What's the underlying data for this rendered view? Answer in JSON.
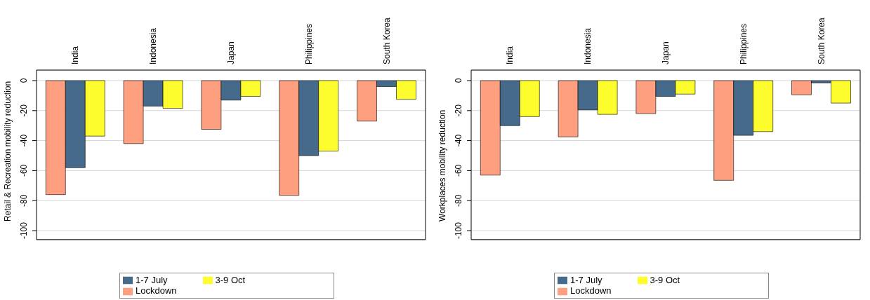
{
  "chart_data": [
    {
      "type": "bar",
      "ylabel": "Retail & Recreation mobility reduction",
      "categories": [
        "India",
        "Indonesia",
        "Japan",
        "Philippines",
        "South Korea"
      ],
      "series": [
        {
          "name": "Lockdown",
          "color": "#fe9f7f",
          "values": [
            -76,
            -42,
            -32.5,
            -76.5,
            -27
          ]
        },
        {
          "name": "1-7 July",
          "color": "#456a8b",
          "values": [
            -58,
            -17,
            -13,
            -50,
            -4
          ]
        },
        {
          "name": "3-9 Oct",
          "color": "#fdfd2e",
          "values": [
            -37,
            -18.5,
            -10.5,
            -47,
            -12.5
          ]
        }
      ],
      "ylim": [
        -106,
        7
      ],
      "yticks": [
        0,
        -20,
        -40,
        -60,
        -80,
        -100
      ],
      "grid": "y",
      "legend": "bottom"
    },
    {
      "type": "bar",
      "ylabel": "Workplaces mobility reduction",
      "categories": [
        "India",
        "Indonesia",
        "Japan",
        "Philippines",
        "South Korea"
      ],
      "series": [
        {
          "name": "Lockdown",
          "color": "#fe9f7f",
          "values": [
            -63,
            -37.5,
            -22,
            -66.5,
            -9.5
          ]
        },
        {
          "name": "1-7 July",
          "color": "#456a8b",
          "values": [
            -30,
            -19.5,
            -10.5,
            -36.5,
            -1.5
          ]
        },
        {
          "name": "3-9 Oct",
          "color": "#fdfd2e",
          "values": [
            -24,
            -22.5,
            -9,
            -34,
            -15
          ]
        }
      ],
      "ylim": [
        -106,
        7
      ],
      "yticks": [
        0,
        -20,
        -40,
        -60,
        -80,
        -100
      ],
      "grid": "y",
      "legend": "bottom"
    }
  ]
}
